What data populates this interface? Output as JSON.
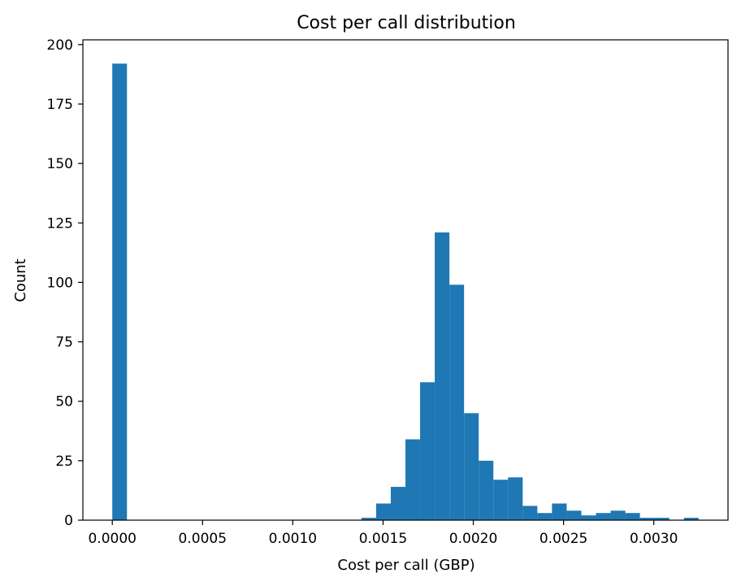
{
  "chart_data": {
    "type": "bar",
    "title": "Cost per call distribution",
    "xlabel": "Cost per call (GBP)",
    "ylabel": "Count",
    "xlim": [
      -0.000163,
      0.003411
    ],
    "ylim": [
      0,
      202
    ],
    "x_ticks": [
      0.0,
      0.0005,
      0.001,
      0.0015,
      0.002,
      0.0025,
      0.003
    ],
    "x_tick_labels": [
      "0.0000",
      "0.0005",
      "0.0010",
      "0.0015",
      "0.0020",
      "0.0025",
      "0.0030"
    ],
    "y_ticks": [
      0,
      25,
      50,
      75,
      100,
      125,
      150,
      175,
      200
    ],
    "y_tick_labels": [
      "0",
      "25",
      "50",
      "75",
      "100",
      "125",
      "150",
      "175",
      "200"
    ],
    "grid": false,
    "color": "#1f77b4",
    "bin_start": 0.0,
    "bin_width": 8.12e-05,
    "values": [
      192,
      0,
      0,
      0,
      0,
      0,
      0,
      0,
      0,
      0,
      0,
      0,
      0,
      0,
      0,
      0,
      0,
      1,
      7,
      14,
      34,
      58,
      121,
      99,
      45,
      25,
      17,
      18,
      6,
      3,
      7,
      4,
      2,
      3,
      4,
      3,
      1,
      1,
      0,
      1
    ]
  }
}
